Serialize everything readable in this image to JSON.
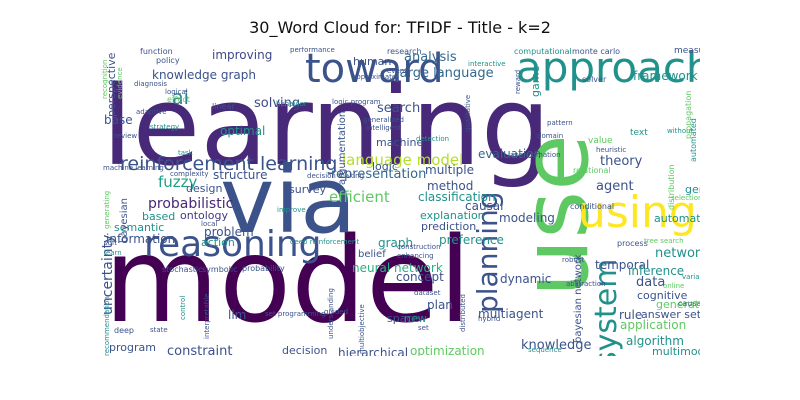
{
  "title": "30_Word Cloud for: TFIDF - Title - k=2",
  "palette": {
    "dark_purple": "#440154",
    "indigo": "#3b528b",
    "teal": "#21918c",
    "green": "#5ec962",
    "yellow": "#fde725",
    "purple": "#482878"
  },
  "words": [
    {
      "text": "learning",
      "color": "#482878",
      "rotated": false
    },
    {
      "text": "model",
      "color": "#440154",
      "rotated": false
    },
    {
      "text": "via",
      "color": "#3b528b",
      "rotated": false
    },
    {
      "text": "use",
      "color": "#5ec962",
      "rotated": true
    },
    {
      "text": "approach",
      "color": "#21918c",
      "rotated": false
    },
    {
      "text": "toward",
      "color": "#3b528b",
      "rotated": false
    },
    {
      "text": "using",
      "color": "#fde725",
      "rotated": false
    },
    {
      "text": "reasoning",
      "color": "#3b528b",
      "rotated": false
    },
    {
      "text": "system",
      "color": "#21918c",
      "rotated": true
    },
    {
      "text": "planning",
      "color": "#3b528b",
      "rotated": true
    },
    {
      "text": "reinforcement learning",
      "color": "#3b528b",
      "rotated": false
    },
    {
      "text": "language model",
      "color": "#b5de2b",
      "rotated": false
    },
    {
      "text": "knowledge graph",
      "color": "#3b528b",
      "rotated": false
    },
    {
      "text": "large language",
      "color": "#31688e",
      "rotated": false
    },
    {
      "text": "analysis",
      "color": "#31688e",
      "rotated": false
    },
    {
      "text": "improving",
      "color": "#3e4989",
      "rotated": false
    },
    {
      "text": "ai",
      "color": "#26828e",
      "rotated": false
    },
    {
      "text": "perspective",
      "color": "#3b528b",
      "rotated": true
    },
    {
      "text": "base",
      "color": "#3b528b",
      "rotated": false
    },
    {
      "text": "solving",
      "color": "#3e4989",
      "rotated": false
    },
    {
      "text": "optimal",
      "color": "#21918c",
      "rotated": false
    },
    {
      "text": "search",
      "color": "#3b528b",
      "rotated": false
    },
    {
      "text": "machine",
      "color": "#3b528b",
      "rotated": false
    },
    {
      "text": "representation",
      "color": "#31688e",
      "rotated": false
    },
    {
      "text": "structure",
      "color": "#3b528b",
      "rotated": false
    },
    {
      "text": "fuzzy",
      "color": "#1fa187",
      "rotated": false
    },
    {
      "text": "probabilistic",
      "color": "#482878",
      "rotated": false
    },
    {
      "text": "design",
      "color": "#3b528b",
      "rotated": false
    },
    {
      "text": "ontology",
      "color": "#443983",
      "rotated": false
    },
    {
      "text": "based",
      "color": "#21918c",
      "rotated": false
    },
    {
      "text": "problem",
      "color": "#3b528b",
      "rotated": false
    },
    {
      "text": "information",
      "color": "#3b528b",
      "rotated": false
    },
    {
      "text": "action",
      "color": "#21918c",
      "rotated": false
    },
    {
      "text": "semantic",
      "color": "#21918c",
      "rotated": false
    },
    {
      "text": "survey",
      "color": "#3b528b",
      "rotated": false
    },
    {
      "text": "efficient",
      "color": "#5ec962",
      "rotated": false
    },
    {
      "text": "method",
      "color": "#3b528b",
      "rotated": false
    },
    {
      "text": "classification",
      "color": "#21918c",
      "rotated": false
    },
    {
      "text": "explanation",
      "color": "#21918c",
      "rotated": false
    },
    {
      "text": "prediction",
      "color": "#3b528b",
      "rotated": false
    },
    {
      "text": "graph",
      "color": "#21918c",
      "rotated": false
    },
    {
      "text": "neural network",
      "color": "#2ab07f",
      "rotated": false
    },
    {
      "text": "causal",
      "color": "#3b528b",
      "rotated": false
    },
    {
      "text": "preference",
      "color": "#21918c",
      "rotated": false
    },
    {
      "text": "belief",
      "color": "#3b528b",
      "rotated": false
    },
    {
      "text": "modeling",
      "color": "#3b528b",
      "rotated": false
    },
    {
      "text": "dynamic",
      "color": "#3b528b",
      "rotated": false
    },
    {
      "text": "concept",
      "color": "#3b528b",
      "rotated": false
    },
    {
      "text": "plan",
      "color": "#3b528b",
      "rotated": false
    },
    {
      "text": "multiagent",
      "color": "#3b528b",
      "rotated": false
    },
    {
      "text": "space",
      "color": "#3b528b",
      "rotated": false
    },
    {
      "text": "new",
      "color": "#21918c",
      "rotated": false
    },
    {
      "text": "knowledge",
      "color": "#3b528b",
      "rotated": false
    },
    {
      "text": "optimization",
      "color": "#5ec962",
      "rotated": false
    },
    {
      "text": "hierarchical",
      "color": "#3b528b",
      "rotated": false
    },
    {
      "text": "decision",
      "color": "#3b528b",
      "rotated": false
    },
    {
      "text": "constraint",
      "color": "#3b528b",
      "rotated": false
    },
    {
      "text": "program",
      "color": "#3b528b",
      "rotated": false
    },
    {
      "text": "llm",
      "color": "#3b528b",
      "rotated": false
    },
    {
      "text": "evaluation",
      "color": "#31688e",
      "rotated": false
    },
    {
      "text": "logic",
      "color": "#3b528b",
      "rotated": false
    },
    {
      "text": "multiple",
      "color": "#3b528b",
      "rotated": false
    },
    {
      "text": "human",
      "color": "#3b528b",
      "rotated": false
    },
    {
      "text": "theory",
      "color": "#3b528b",
      "rotated": false
    },
    {
      "text": "agent",
      "color": "#3b528b",
      "rotated": false
    },
    {
      "text": "data",
      "color": "#3b528b",
      "rotated": false
    },
    {
      "text": "network",
      "color": "#21918c",
      "rotated": false
    },
    {
      "text": "temporal",
      "color": "#3b528b",
      "rotated": false
    },
    {
      "text": "inference",
      "color": "#21918c",
      "rotated": false
    },
    {
      "text": "general",
      "color": "#21918c",
      "rotated": false
    },
    {
      "text": "cognitive",
      "color": "#3b528b",
      "rotated": false
    },
    {
      "text": "rule",
      "color": "#3b528b",
      "rotated": false
    },
    {
      "text": "answer set",
      "color": "#3b528b",
      "rotated": false
    },
    {
      "text": "application",
      "color": "#5ec962",
      "rotated": false
    },
    {
      "text": "algorithm",
      "color": "#21918c",
      "rotated": false
    },
    {
      "text": "multimodal",
      "color": "#21918c",
      "rotated": false
    },
    {
      "text": "generation",
      "color": "#5ec962",
      "rotated": false
    },
    {
      "text": "framework",
      "color": "#21918c",
      "rotated": false
    },
    {
      "text": "bayesian network",
      "color": "#3b528b",
      "rotated": true
    },
    {
      "text": "uncertainty",
      "color": "#3b528b",
      "rotated": true
    },
    {
      "text": "bayesian",
      "color": "#3b528b",
      "rotated": true
    },
    {
      "text": "game",
      "color": "#21918c",
      "rotated": true
    },
    {
      "text": "argumentation",
      "color": "#3b528b",
      "rotated": true
    },
    {
      "text": "research",
      "color": "#3b528b",
      "rotated": false
    },
    {
      "text": "computational",
      "color": "#21918c",
      "rotated": false
    },
    {
      "text": "monte carlo",
      "color": "#3b528b",
      "rotated": false
    },
    {
      "text": "measure",
      "color": "#3b528b",
      "rotated": false
    },
    {
      "text": "function",
      "color": "#3b528b",
      "rotated": false
    },
    {
      "text": "policy",
      "color": "#3b528b",
      "rotated": false
    },
    {
      "text": "performance",
      "color": "#3b528b",
      "rotated": false
    },
    {
      "text": "interactive",
      "color": "#21918c",
      "rotated": false
    },
    {
      "text": "approximate",
      "color": "#3b528b",
      "rotated": false
    },
    {
      "text": "event",
      "color": "#3b528b",
      "rotated": false
    },
    {
      "text": "solver",
      "color": "#3b528b",
      "rotated": false
    },
    {
      "text": "logical",
      "color": "#3b528b",
      "rotated": false
    },
    {
      "text": "diagnosis",
      "color": "#3b528b",
      "rotated": false
    },
    {
      "text": "effect",
      "color": "#5ec962",
      "rotated": false
    },
    {
      "text": "adaptive",
      "color": "#3b528b",
      "rotated": false
    },
    {
      "text": "linear",
      "color": "#3b528b",
      "rotated": false
    },
    {
      "text": "strategy",
      "color": "#21918c",
      "rotated": false
    },
    {
      "text": "review",
      "color": "#3b528b",
      "rotated": false
    },
    {
      "text": "behavior",
      "color": "#21918c",
      "rotated": false
    },
    {
      "text": "logic program",
      "color": "#3b528b",
      "rotated": false
    },
    {
      "text": "generalized",
      "color": "#3b528b",
      "rotated": false
    },
    {
      "text": "intelligent",
      "color": "#3b528b",
      "rotated": false
    },
    {
      "text": "detection",
      "color": "#21918c",
      "rotated": false
    },
    {
      "text": "pattern",
      "color": "#3b528b",
      "rotated": false
    },
    {
      "text": "domain",
      "color": "#3b528b",
      "rotated": false
    },
    {
      "text": "value",
      "color": "#5ec962",
      "rotated": false
    },
    {
      "text": "text",
      "color": "#21918c",
      "rotated": false
    },
    {
      "text": "approximation",
      "color": "#3b528b",
      "rotated": false
    },
    {
      "text": "heuristic",
      "color": "#3b528b",
      "rotated": false
    },
    {
      "text": "relational",
      "color": "#5ec962",
      "rotated": false
    },
    {
      "text": "conditional",
      "color": "#3b528b",
      "rotated": false
    },
    {
      "text": "automatic",
      "color": "#21918c",
      "rotated": false
    },
    {
      "text": "selection",
      "color": "#5ec962",
      "rotated": false
    },
    {
      "text": "decision making",
      "color": "#3b528b",
      "rotated": false
    },
    {
      "text": "deep reinforcement",
      "color": "#21918c",
      "rotated": false
    },
    {
      "text": "machine learning",
      "color": "#3b528b",
      "rotated": false
    },
    {
      "text": "complexity",
      "color": "#3b528b",
      "rotated": false
    },
    {
      "text": "task",
      "color": "#21918c",
      "rotated": false
    },
    {
      "text": "improve",
      "color": "#21918c",
      "rotated": false
    },
    {
      "text": "local",
      "color": "#3b528b",
      "rotated": false
    },
    {
      "text": "stochastic",
      "color": "#3b528b",
      "rotated": false
    },
    {
      "text": "symbolic",
      "color": "#3b528b",
      "rotated": false
    },
    {
      "text": "probability",
      "color": "#3b528b",
      "rotated": false
    },
    {
      "text": "construction",
      "color": "#3b528b",
      "rotated": false
    },
    {
      "text": "enhancing",
      "color": "#3b528b",
      "rotated": false
    },
    {
      "text": "dataset",
      "color": "#3b528b",
      "rotated": false
    },
    {
      "text": "robust",
      "color": "#3b528b",
      "rotated": false
    },
    {
      "text": "abstraction",
      "color": "#3b528b",
      "rotated": false
    },
    {
      "text": "process",
      "color": "#3b528b",
      "rotated": false
    },
    {
      "text": "tree search",
      "color": "#5ec962",
      "rotated": false
    },
    {
      "text": "variable",
      "color": "#21918c",
      "rotated": false
    },
    {
      "text": "online",
      "color": "#5ec962",
      "rotated": false
    },
    {
      "text": "causal model",
      "color": "#3b528b",
      "rotated": false
    },
    {
      "text": "hybrid",
      "color": "#3b528b",
      "rotated": false
    },
    {
      "text": "guided",
      "color": "#3b528b",
      "rotated": false
    },
    {
      "text": "set",
      "color": "#3b528b",
      "rotated": false
    },
    {
      "text": "sequence",
      "color": "#21918c",
      "rotated": false
    },
    {
      "text": "set programming",
      "color": "#3b528b",
      "rotated": false
    },
    {
      "text": "deep",
      "color": "#3b528b",
      "rotated": false
    },
    {
      "text": "state",
      "color": "#3b528b",
      "rotated": false
    },
    {
      "text": "control",
      "color": "#21918c",
      "rotated": true
    },
    {
      "text": "interpretable",
      "color": "#3b528b",
      "rotated": true
    },
    {
      "text": "understanding",
      "color": "#3b528b",
      "rotated": true
    },
    {
      "text": "multiobjective",
      "color": "#3b528b",
      "rotated": true
    },
    {
      "text": "distributed",
      "color": "#3b528b",
      "rotated": true
    },
    {
      "text": "recommendation",
      "color": "#21918c",
      "rotated": true
    },
    {
      "text": "soft",
      "color": "#3b528b",
      "rotated": false
    },
    {
      "text": "learn",
      "color": "#21918c",
      "rotated": false
    },
    {
      "text": "generating",
      "color": "#5ec962",
      "rotated": true
    },
    {
      "text": "recognition",
      "color": "#5ec962",
      "rotated": true
    },
    {
      "text": "evidence",
      "color": "#5ec962",
      "rotated": true
    },
    {
      "text": "qualitative",
      "color": "#3b528b",
      "rotated": true
    },
    {
      "text": "reward",
      "color": "#3b528b",
      "rotated": true
    },
    {
      "text": "automated",
      "color": "#21918c",
      "rotated": true
    },
    {
      "text": "distribution",
      "color": "#5ec962",
      "rotated": true
    },
    {
      "text": "without",
      "color": "#21918c",
      "rotated": false
    },
    {
      "text": "propagation",
      "color": "#5ec962",
      "rotated": true
    }
  ]
}
